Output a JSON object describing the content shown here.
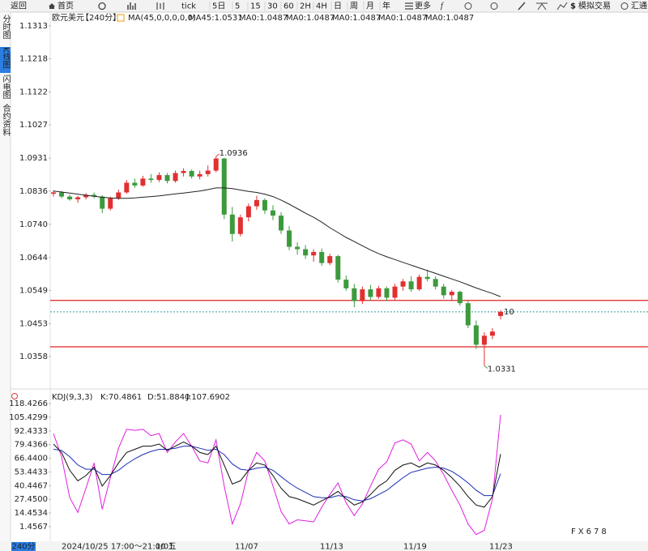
{
  "toolbar": {
    "back": "返回",
    "home": "首页",
    "tick": "tick",
    "periods": [
      "5日",
      "5",
      "15",
      "30",
      "60",
      "2H",
      "4H",
      "日",
      "周",
      "月",
      "年"
    ],
    "more": "更多",
    "demo_trade": "模拟交易",
    "huitong": "汇通"
  },
  "sidebar": [
    "分时图",
    "K线图",
    "闪电图",
    "合约资料"
  ],
  "legend": {
    "symbol": "欧元美元",
    "period": "【240分】",
    "ma_params": "MA(45,0,0,0,0,0)",
    "ma45": "MA45:1.0531",
    "ma0": [
      {
        "text": "MA0:1.0487",
        "color": "#1f5cff"
      },
      {
        "text": "MA0:1.0487",
        "color": "#e01ee0"
      },
      {
        "text": "MA0:1.0487",
        "color": "#f09a00"
      },
      {
        "text": "MA0:1.0487",
        "color": "#8a8a8a"
      },
      {
        "text": "MA0:1.0487",
        "color": "#d83a3a"
      }
    ]
  },
  "price_chart": {
    "ylim": [
      1.0269,
      1.1341
    ],
    "yticks": [
      1.1313,
      1.1218,
      1.1122,
      1.1027,
      1.0931,
      1.0836,
      {
        "value": 1.074,
        "label": "1.0740"
      },
      1.0644,
      1.0549,
      1.0453,
      1.0358
    ],
    "up_color": "#e03030",
    "down_color": "#3c9a3c",
    "ma_color": "#222222",
    "candles": [
      [
        1.0828,
        1.0838,
        1.082,
        1.0832
      ],
      [
        1.0832,
        1.0836,
        1.0815,
        1.082
      ],
      [
        1.082,
        1.0826,
        1.0808,
        1.0812
      ],
      [
        1.0812,
        1.0822,
        1.0802,
        1.0818
      ],
      [
        1.0818,
        1.083,
        1.0812,
        1.0825
      ],
      [
        1.0825,
        1.0832,
        1.0815,
        1.082
      ],
      [
        1.082,
        1.0824,
        1.0772,
        1.0785
      ],
      [
        1.0785,
        1.082,
        1.078,
        1.0815
      ],
      [
        1.0815,
        1.084,
        1.081,
        1.0832
      ],
      [
        1.0832,
        1.0868,
        1.0828,
        1.086
      ],
      [
        1.086,
        1.0872,
        1.0845,
        1.0852
      ],
      [
        1.0852,
        1.088,
        1.0848,
        1.0872
      ],
      [
        1.0872,
        1.0885,
        1.086,
        1.0868
      ],
      [
        1.0868,
        1.089,
        1.0862,
        1.0882
      ],
      [
        1.0882,
        1.0888,
        1.0858,
        1.0865
      ],
      [
        1.0865,
        1.0895,
        1.086,
        1.0888
      ],
      [
        1.0888,
        1.0902,
        1.0878,
        1.0894
      ],
      [
        1.0894,
        1.0898,
        1.0872,
        1.0878
      ],
      [
        1.0878,
        1.0895,
        1.087,
        1.0885
      ],
      [
        1.0885,
        1.091,
        1.0878,
        1.0895
      ],
      [
        1.0895,
        1.0936,
        1.089,
        1.093
      ],
      [
        1.093,
        1.0932,
        1.0755,
        1.0768
      ],
      [
        1.0768,
        1.079,
        1.069,
        1.0712
      ],
      [
        1.0712,
        1.0768,
        1.0705,
        1.076
      ],
      [
        1.076,
        1.08,
        1.0748,
        1.0792
      ],
      [
        1.0792,
        1.0822,
        1.0782,
        1.081
      ],
      [
        1.081,
        1.0815,
        1.077,
        1.078
      ],
      [
        1.078,
        1.0795,
        1.0752,
        1.0765
      ],
      [
        1.0765,
        1.0775,
        1.0712,
        1.0722
      ],
      [
        1.0722,
        1.0735,
        1.0665,
        1.0675
      ],
      [
        1.0675,
        1.0688,
        1.0652,
        1.0668
      ],
      [
        1.0668,
        1.068,
        1.064,
        1.065
      ],
      [
        1.065,
        1.0668,
        1.0632,
        1.066
      ],
      [
        1.066,
        1.067,
        1.062,
        1.0628
      ],
      [
        1.0628,
        1.0655,
        1.0622,
        1.0648
      ],
      [
        1.0648,
        1.0652,
        1.0572,
        1.058
      ],
      [
        1.058,
        1.0592,
        1.0548,
        1.0555
      ],
      [
        1.0555,
        1.0568,
        1.05,
        1.0518
      ],
      [
        1.0518,
        1.056,
        1.051,
        1.0552
      ],
      [
        1.0552,
        1.0565,
        1.052,
        1.053
      ],
      [
        1.053,
        1.0562,
        1.0525,
        1.0555
      ],
      [
        1.0555,
        1.056,
        1.0518,
        1.0528
      ],
      [
        1.0528,
        1.0568,
        1.0522,
        1.056
      ],
      [
        1.056,
        1.0582,
        1.0548,
        1.0575
      ],
      [
        1.0575,
        1.059,
        1.0545,
        1.0552
      ],
      [
        1.0552,
        1.0595,
        1.0548,
        1.0588
      ],
      [
        1.0588,
        1.0608,
        1.0575,
        1.0582
      ],
      [
        1.0582,
        1.059,
        1.0552,
        1.056
      ],
      [
        1.056,
        1.0568,
        1.0525,
        1.0535
      ],
      [
        1.0535,
        1.055,
        1.052,
        1.0545
      ],
      [
        1.0545,
        1.0548,
        1.0505,
        1.0512
      ],
      [
        1.0512,
        1.0518,
        1.044,
        1.0448
      ],
      [
        1.0448,
        1.0462,
        1.038,
        1.0392
      ],
      [
        1.0392,
        1.0428,
        1.0331,
        1.0418
      ],
      [
        1.0418,
        1.044,
        1.0408,
        1.043
      ],
      [
        1.0475,
        1.0492,
        1.0465,
        1.0487
      ]
    ],
    "ma45": [
      1.0836,
      1.0833,
      1.083,
      1.0827,
      1.0824,
      1.0821,
      1.0818,
      1.0816,
      1.0815,
      1.0815,
      1.0816,
      1.0818,
      1.082,
      1.0822,
      1.0825,
      1.0828,
      1.083,
      1.0833,
      1.0836,
      1.084,
      1.0845,
      1.0845,
      1.0843,
      1.0839,
      1.0835,
      1.0832,
      1.0827,
      1.082,
      1.081,
      1.0798,
      1.0785,
      1.0772,
      1.076,
      1.0746,
      1.073,
      1.0716,
      1.0702,
      1.069,
      1.0678,
      1.0666,
      1.0655,
      1.0646,
      1.0638,
      1.063,
      1.0622,
      1.0614,
      1.0606,
      1.0598,
      1.059,
      1.0582,
      1.0574,
      1.0565,
      1.0556,
      1.0548,
      1.054,
      1.0531
    ],
    "high": 1.0936,
    "low": 1.0331,
    "marker": "10",
    "levels": [
      1.052,
      1.0386
    ],
    "level_color": "#e02020",
    "last_price": 1.0487,
    "last_color": "#2a9a9a"
  },
  "kdj": {
    "params": "KDJ(9,3,3)",
    "k_label": "K:70.4861",
    "d_label": "D:51.8840",
    "j_label": "J:107.6902",
    "ylim": [
      -12.4,
      127.7
    ],
    "yticks": [
      118.4266,
      105.4299,
      92.4333,
      79.4366,
      {
        "value": 66.44,
        "label": "66.4400"
      },
      53.4433,
      40.4467,
      {
        "value": 27.45,
        "label": "27.4500"
      },
      14.4534,
      1.4567
    ],
    "k_color": "#111111",
    "d_color": "#1c2fb8",
    "j_color": "#e01ee0",
    "k": [
      80,
      72,
      55,
      45,
      50,
      58,
      40,
      50,
      62,
      72,
      75,
      78,
      78,
      80,
      74,
      78,
      82,
      78,
      72,
      70,
      78,
      60,
      42,
      45,
      55,
      62,
      60,
      50,
      38,
      30,
      28,
      25,
      22,
      26,
      30,
      35,
      28,
      22,
      25,
      32,
      40,
      45,
      55,
      60,
      62,
      58,
      62,
      60,
      55,
      48,
      40,
      30,
      22,
      20,
      30,
      70.4861
    ],
    "d": [
      75,
      74,
      68,
      60,
      56,
      56,
      51,
      51,
      55,
      61,
      66,
      70,
      73,
      75,
      75,
      76,
      78,
      78,
      76,
      74,
      75,
      70,
      61,
      56,
      55,
      57,
      58,
      55,
      49,
      43,
      38,
      34,
      30,
      29,
      29,
      31,
      30,
      27,
      26,
      28,
      32,
      36,
      42,
      48,
      53,
      55,
      57,
      58,
      57,
      54,
      49,
      43,
      36,
      31,
      31,
      51.884
    ],
    "j": [
      90,
      68,
      29,
      15,
      38,
      62,
      18,
      48,
      76,
      94,
      93,
      94,
      88,
      90,
      72,
      82,
      90,
      78,
      64,
      62,
      84,
      40,
      4,
      23,
      55,
      72,
      64,
      40,
      16,
      4,
      8,
      7,
      6,
      20,
      32,
      43,
      24,
      12,
      23,
      40,
      56,
      63,
      81,
      84,
      80,
      64,
      72,
      64,
      51,
      36,
      22,
      4,
      -6,
      -2,
      28,
      107.6902
    ]
  },
  "x_axis": {
    "period": "240分",
    "first": "2024/10/25 17:00～21:00 五",
    "labels": [
      "1/01",
      "11/07",
      "11/13",
      "11/19",
      "11/23"
    ]
  },
  "watermark": "FX678"
}
